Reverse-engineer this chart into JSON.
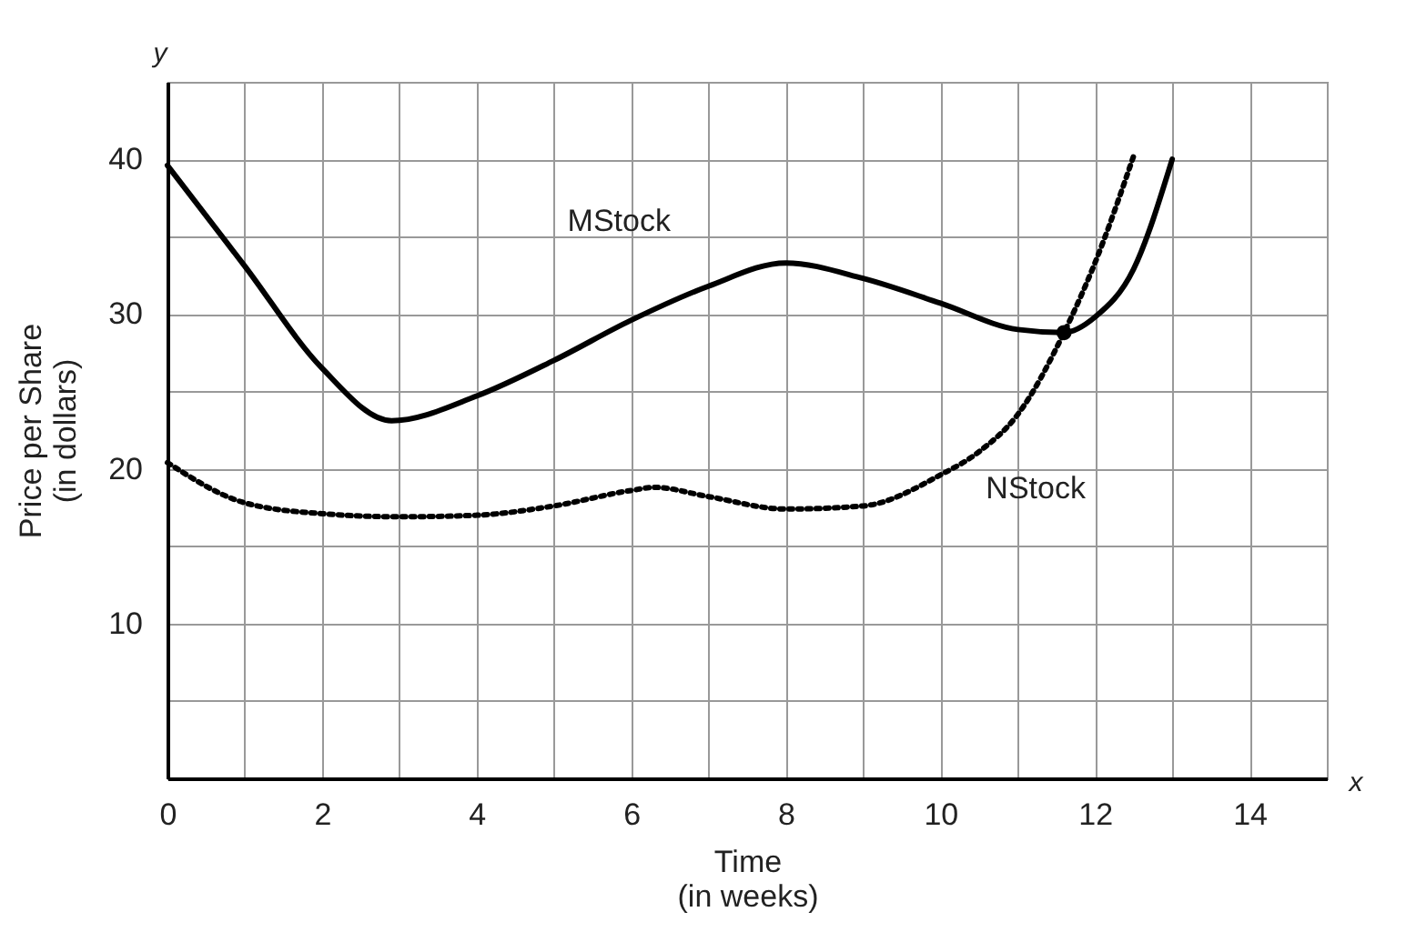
{
  "chart_data": {
    "type": "line",
    "xlabel": "Time\n(in weeks)",
    "ylabel": "Price per Share\n(in dollars)",
    "annotations": [
      "x",
      "y"
    ],
    "xlim": [
      0,
      15
    ],
    "ylim": [
      0,
      45
    ],
    "xticks": [
      0,
      {
        "value": 1,
        "label": null
      },
      2,
      {
        "value": 3,
        "label": null
      },
      4,
      {
        "value": 5,
        "label": null
      },
      6,
      {
        "value": 7,
        "label": null
      },
      8,
      {
        "value": 9,
        "label": null
      },
      10,
      {
        "value": 11,
        "label": null
      },
      12,
      {
        "value": 13,
        "label": null
      },
      14,
      {
        "value": 15,
        "label": null
      }
    ],
    "yticks": [
      {
        "value": 5,
        "label": null
      },
      10,
      {
        "value": 15,
        "label": null
      },
      20,
      {
        "value": 25,
        "label": null
      },
      30,
      {
        "value": 35,
        "label": null
      },
      40,
      {
        "value": 45,
        "label": null
      }
    ],
    "grid": true,
    "legend": false,
    "marker": "none",
    "series": [
      {
        "name": "MStock",
        "color": "#000000",
        "line_style": "solid",
        "x": [
          0,
          1,
          2,
          2.9,
          4,
          5,
          6,
          7,
          8,
          9,
          10,
          11,
          11.6,
          12,
          12.5,
          13
        ],
        "values": [
          39.6,
          33.1,
          26.5,
          23.1,
          24.7,
          27.0,
          29.6,
          31.8,
          33.3,
          32.3,
          30.7,
          29.0,
          28.8,
          29.8,
          32.9,
          40.0
        ]
      },
      {
        "name": "NStock",
        "color": "#000000",
        "line_style": "dotted",
        "x": [
          0,
          1,
          2,
          3,
          4,
          5,
          6,
          6.3,
          7,
          8,
          9,
          10,
          10.5,
          11,
          11.6,
          12,
          12.5
        ],
        "values": [
          20.4,
          17.8,
          17.1,
          16.9,
          17.0,
          17.6,
          18.6,
          18.8,
          18.2,
          17.4,
          17.6,
          19.6,
          21.1,
          23.5,
          28.8,
          33.3,
          40.2
        ]
      },
      {
        "type": "scatter",
        "color": "#000000",
        "marker": "circle",
        "x": [
          11.6
        ],
        "values": [
          28.8
        ]
      }
    ]
  }
}
